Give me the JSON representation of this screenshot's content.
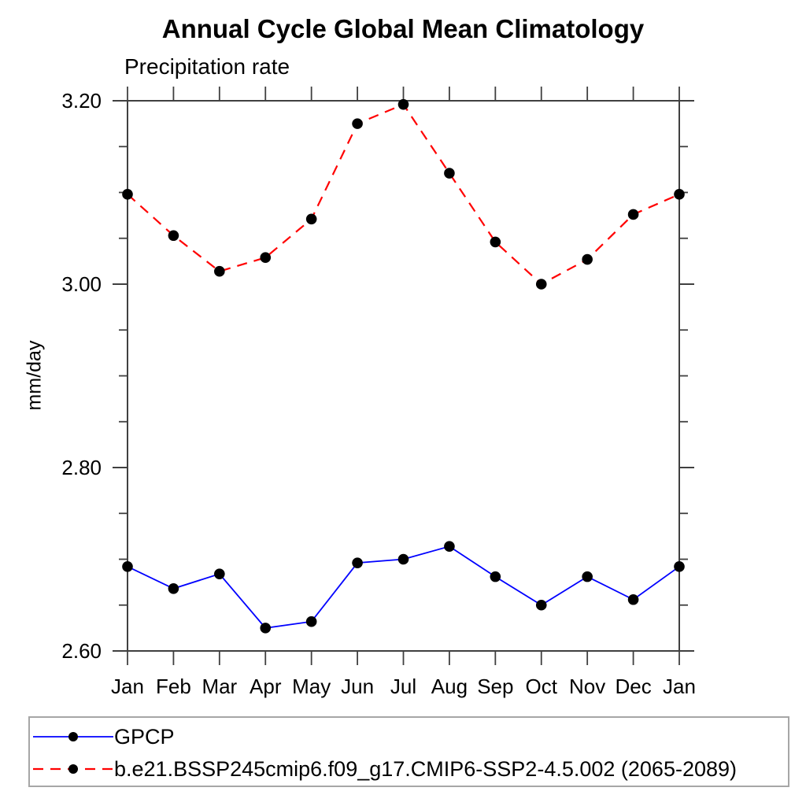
{
  "page": {
    "title": "Annual Cycle Global Mean Climatology",
    "subtitle": "Precipitation rate",
    "y_axis_title": "mm/day"
  },
  "colors": {
    "background": "#ffffff",
    "axis": "#404040",
    "text": "#000000",
    "legend_border": "#a6a6a6",
    "marker": "#000000",
    "gpcp_blue": "#0000ff",
    "model_red": "#ff0000"
  },
  "chart_data": {
    "type": "line",
    "title": "Annual Cycle Global Mean Climatology",
    "subtitle": "Precipitation rate",
    "ylabel": "mm/day",
    "xlabel": "",
    "categories": [
      "Jan",
      "Feb",
      "Mar",
      "Apr",
      "May",
      "Jun",
      "Jul",
      "Aug",
      "Sep",
      "Oct",
      "Nov",
      "Dec",
      "Jan"
    ],
    "ylim": [
      2.6,
      3.2
    ],
    "ytick_major": [
      2.6,
      2.8,
      3.0,
      3.2
    ],
    "ytick_labels": [
      "2.60",
      "2.80",
      "3.00",
      "3.20"
    ],
    "ytick_minor_step": 0.05,
    "grid": false,
    "legend_position": "bottom-left-box",
    "series": [
      {
        "name": "GPCP",
        "color": "#0000ff",
        "line_style": "solid",
        "marker": "filled-circle",
        "marker_color": "#000000",
        "values": [
          2.692,
          2.668,
          2.684,
          2.625,
          2.632,
          2.696,
          2.7,
          2.714,
          2.681,
          2.65,
          2.681,
          2.656,
          2.692
        ]
      },
      {
        "name": "b.e21.BSSP245cmip6.f09_g17.CMIP6-SSP2-4.5.002 (2065-2089)",
        "color": "#ff0000",
        "line_style": "dashed",
        "marker": "filled-circle",
        "marker_color": "#000000",
        "values": [
          3.098,
          3.053,
          3.014,
          3.029,
          3.071,
          3.175,
          3.196,
          3.121,
          3.046,
          3.0,
          3.027,
          3.076,
          3.098
        ]
      }
    ]
  }
}
